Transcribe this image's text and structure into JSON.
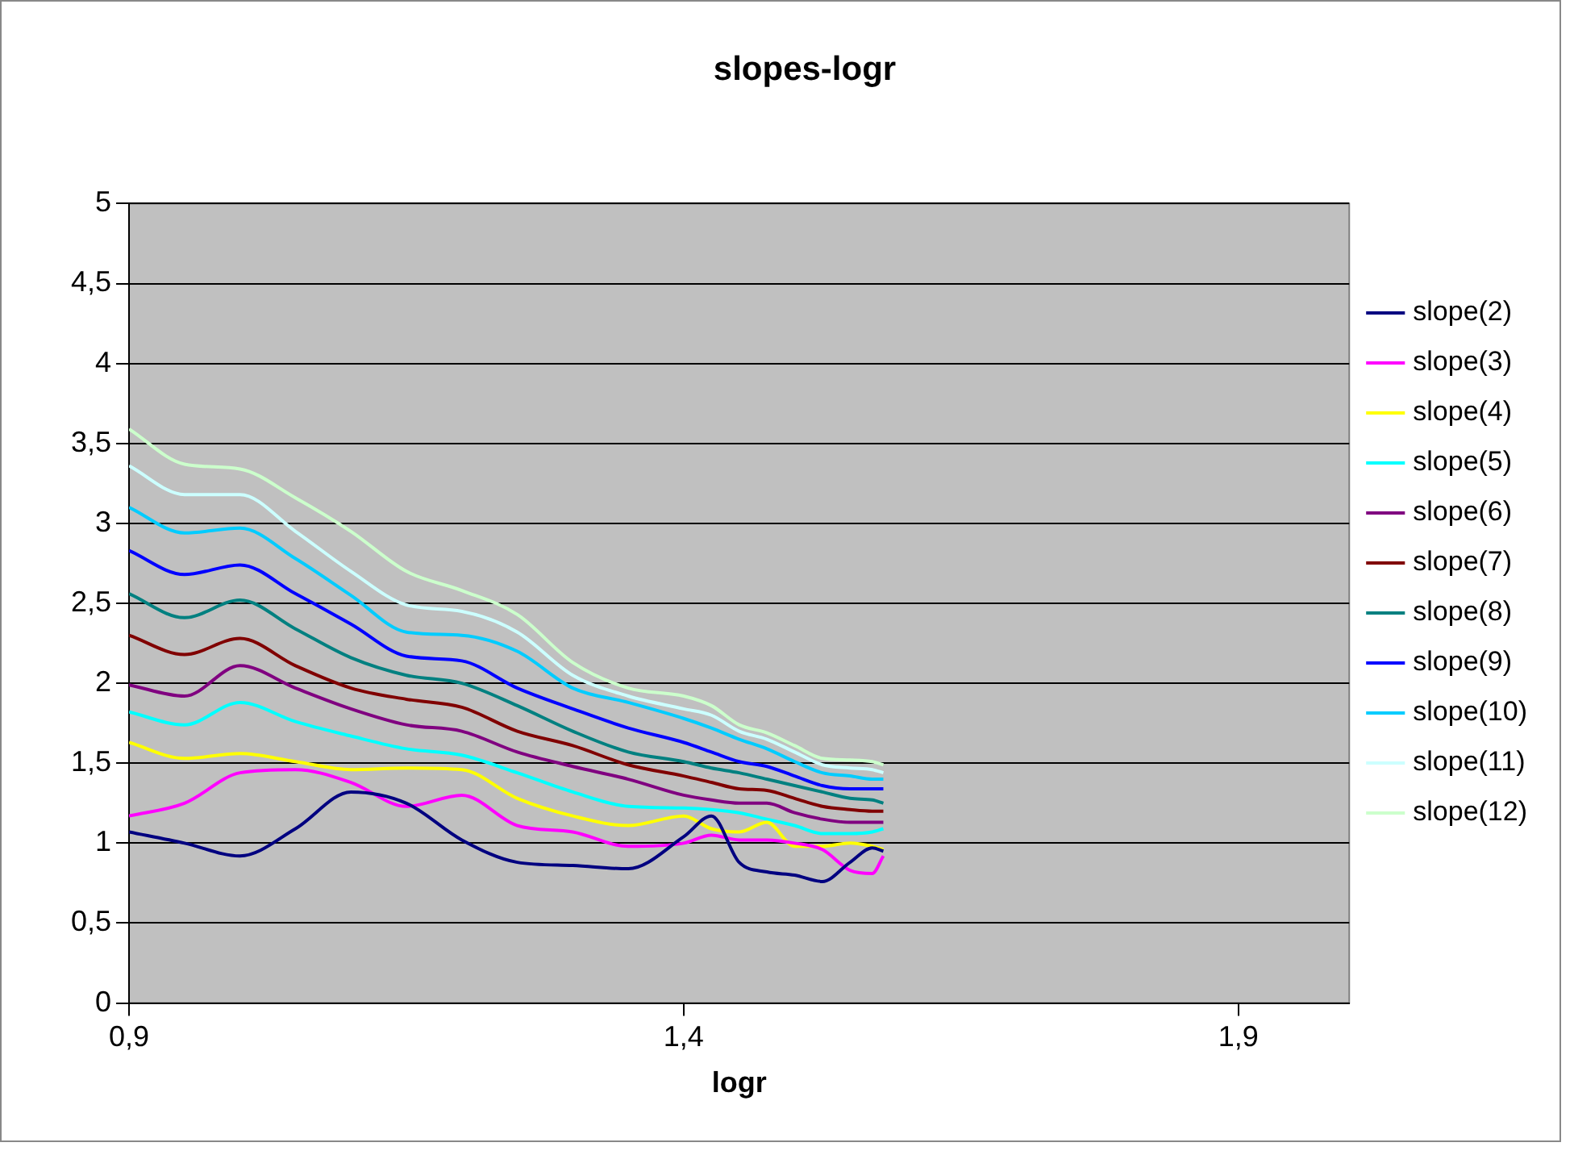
{
  "chart_data": {
    "type": "line",
    "title": "slopes-logr",
    "xlabel": "logr",
    "x": [
      0.9,
      0.95,
      1.0,
      1.05,
      1.1,
      1.15,
      1.2,
      1.25,
      1.3,
      1.35,
      1.4,
      1.425,
      1.45,
      1.475,
      1.5,
      1.525,
      1.55,
      1.57,
      1.58
    ],
    "xlim": [
      0.9,
      2.0
    ],
    "xticks": [
      {
        "value": 0.9,
        "label": "0,9"
      },
      {
        "value": 1.4,
        "label": "1,4"
      },
      {
        "value": 1.9,
        "label": "1,9"
      }
    ],
    "ylim": [
      0,
      5
    ],
    "yticks": [
      0,
      {
        "value": 0.5,
        "label": "0,5"
      },
      1,
      {
        "value": 1.5,
        "label": "1,5"
      },
      2,
      {
        "value": 2.5,
        "label": "2,5"
      },
      3,
      {
        "value": 3.5,
        "label": "3,5"
      },
      4,
      {
        "value": 4.5,
        "label": "4,5"
      },
      5
    ],
    "grid": "y",
    "legend": "right",
    "marker": "none",
    "line_style": "solid",
    "series": [
      {
        "name": "slope(2)",
        "color": "#000080",
        "values": [
          1.07,
          1.0,
          0.92,
          1.09,
          1.32,
          1.25,
          1.02,
          0.88,
          0.86,
          0.84,
          1.04,
          1.17,
          0.88,
          0.82,
          0.8,
          0.76,
          0.88,
          0.97,
          0.95
        ]
      },
      {
        "name": "slope(3)",
        "color": "#ff00ff",
        "values": [
          1.17,
          1.25,
          1.44,
          1.46,
          1.38,
          1.23,
          1.3,
          1.11,
          1.07,
          0.98,
          1.0,
          1.05,
          1.02,
          1.02,
          1.0,
          0.96,
          0.83,
          0.81,
          0.92
        ]
      },
      {
        "name": "slope(4)",
        "color": "#ffff00",
        "values": [
          1.63,
          1.53,
          1.56,
          1.51,
          1.46,
          1.47,
          1.46,
          1.28,
          1.17,
          1.11,
          1.17,
          1.09,
          1.07,
          1.13,
          0.98,
          0.98,
          1.0,
          0.98,
          0.96
        ]
      },
      {
        "name": "slope(5)",
        "color": "#00ffff",
        "values": [
          1.82,
          1.74,
          1.88,
          1.76,
          1.67,
          1.59,
          1.55,
          1.44,
          1.32,
          1.23,
          1.22,
          1.21,
          1.19,
          1.15,
          1.11,
          1.06,
          1.06,
          1.07,
          1.09
        ]
      },
      {
        "name": "slope(6)",
        "color": "#800080",
        "values": [
          1.99,
          1.92,
          2.11,
          1.97,
          1.84,
          1.74,
          1.7,
          1.57,
          1.48,
          1.4,
          1.3,
          1.27,
          1.25,
          1.25,
          1.19,
          1.15,
          1.13,
          1.13,
          1.13
        ]
      },
      {
        "name": "slope(7)",
        "color": "#800000",
        "values": [
          2.3,
          2.18,
          2.28,
          2.11,
          1.97,
          1.9,
          1.85,
          1.7,
          1.61,
          1.49,
          1.42,
          1.38,
          1.34,
          1.33,
          1.28,
          1.23,
          1.21,
          1.2,
          1.2
        ]
      },
      {
        "name": "slope(8)",
        "color": "#008080",
        "values": [
          2.56,
          2.41,
          2.52,
          2.34,
          2.16,
          2.05,
          2.0,
          1.86,
          1.7,
          1.57,
          1.51,
          1.47,
          1.44,
          1.4,
          1.36,
          1.32,
          1.28,
          1.27,
          1.25
        ]
      },
      {
        "name": "slope(9)",
        "color": "#0000ff",
        "values": [
          2.83,
          2.68,
          2.74,
          2.56,
          2.37,
          2.17,
          2.14,
          1.97,
          1.84,
          1.72,
          1.63,
          1.57,
          1.51,
          1.48,
          1.42,
          1.36,
          1.34,
          1.34,
          1.34
        ]
      },
      {
        "name": "slope(10)",
        "color": "#00ccff",
        "values": [
          3.1,
          2.94,
          2.97,
          2.78,
          2.55,
          2.32,
          2.3,
          2.2,
          1.97,
          1.88,
          1.78,
          1.72,
          1.65,
          1.59,
          1.51,
          1.44,
          1.42,
          1.4,
          1.4
        ]
      },
      {
        "name": "slope(11)",
        "color": "#ccffff",
        "values": [
          3.36,
          3.18,
          3.18,
          2.95,
          2.7,
          2.49,
          2.45,
          2.32,
          2.05,
          1.92,
          1.84,
          1.8,
          1.7,
          1.65,
          1.57,
          1.49,
          1.47,
          1.46,
          1.44
        ]
      },
      {
        "name": "slope(12)",
        "color": "#ccffcc",
        "values": [
          3.59,
          3.37,
          3.34,
          3.16,
          2.95,
          2.7,
          2.58,
          2.43,
          2.13,
          1.97,
          1.92,
          1.86,
          1.74,
          1.69,
          1.61,
          1.53,
          1.52,
          1.51,
          1.49
        ]
      }
    ]
  }
}
